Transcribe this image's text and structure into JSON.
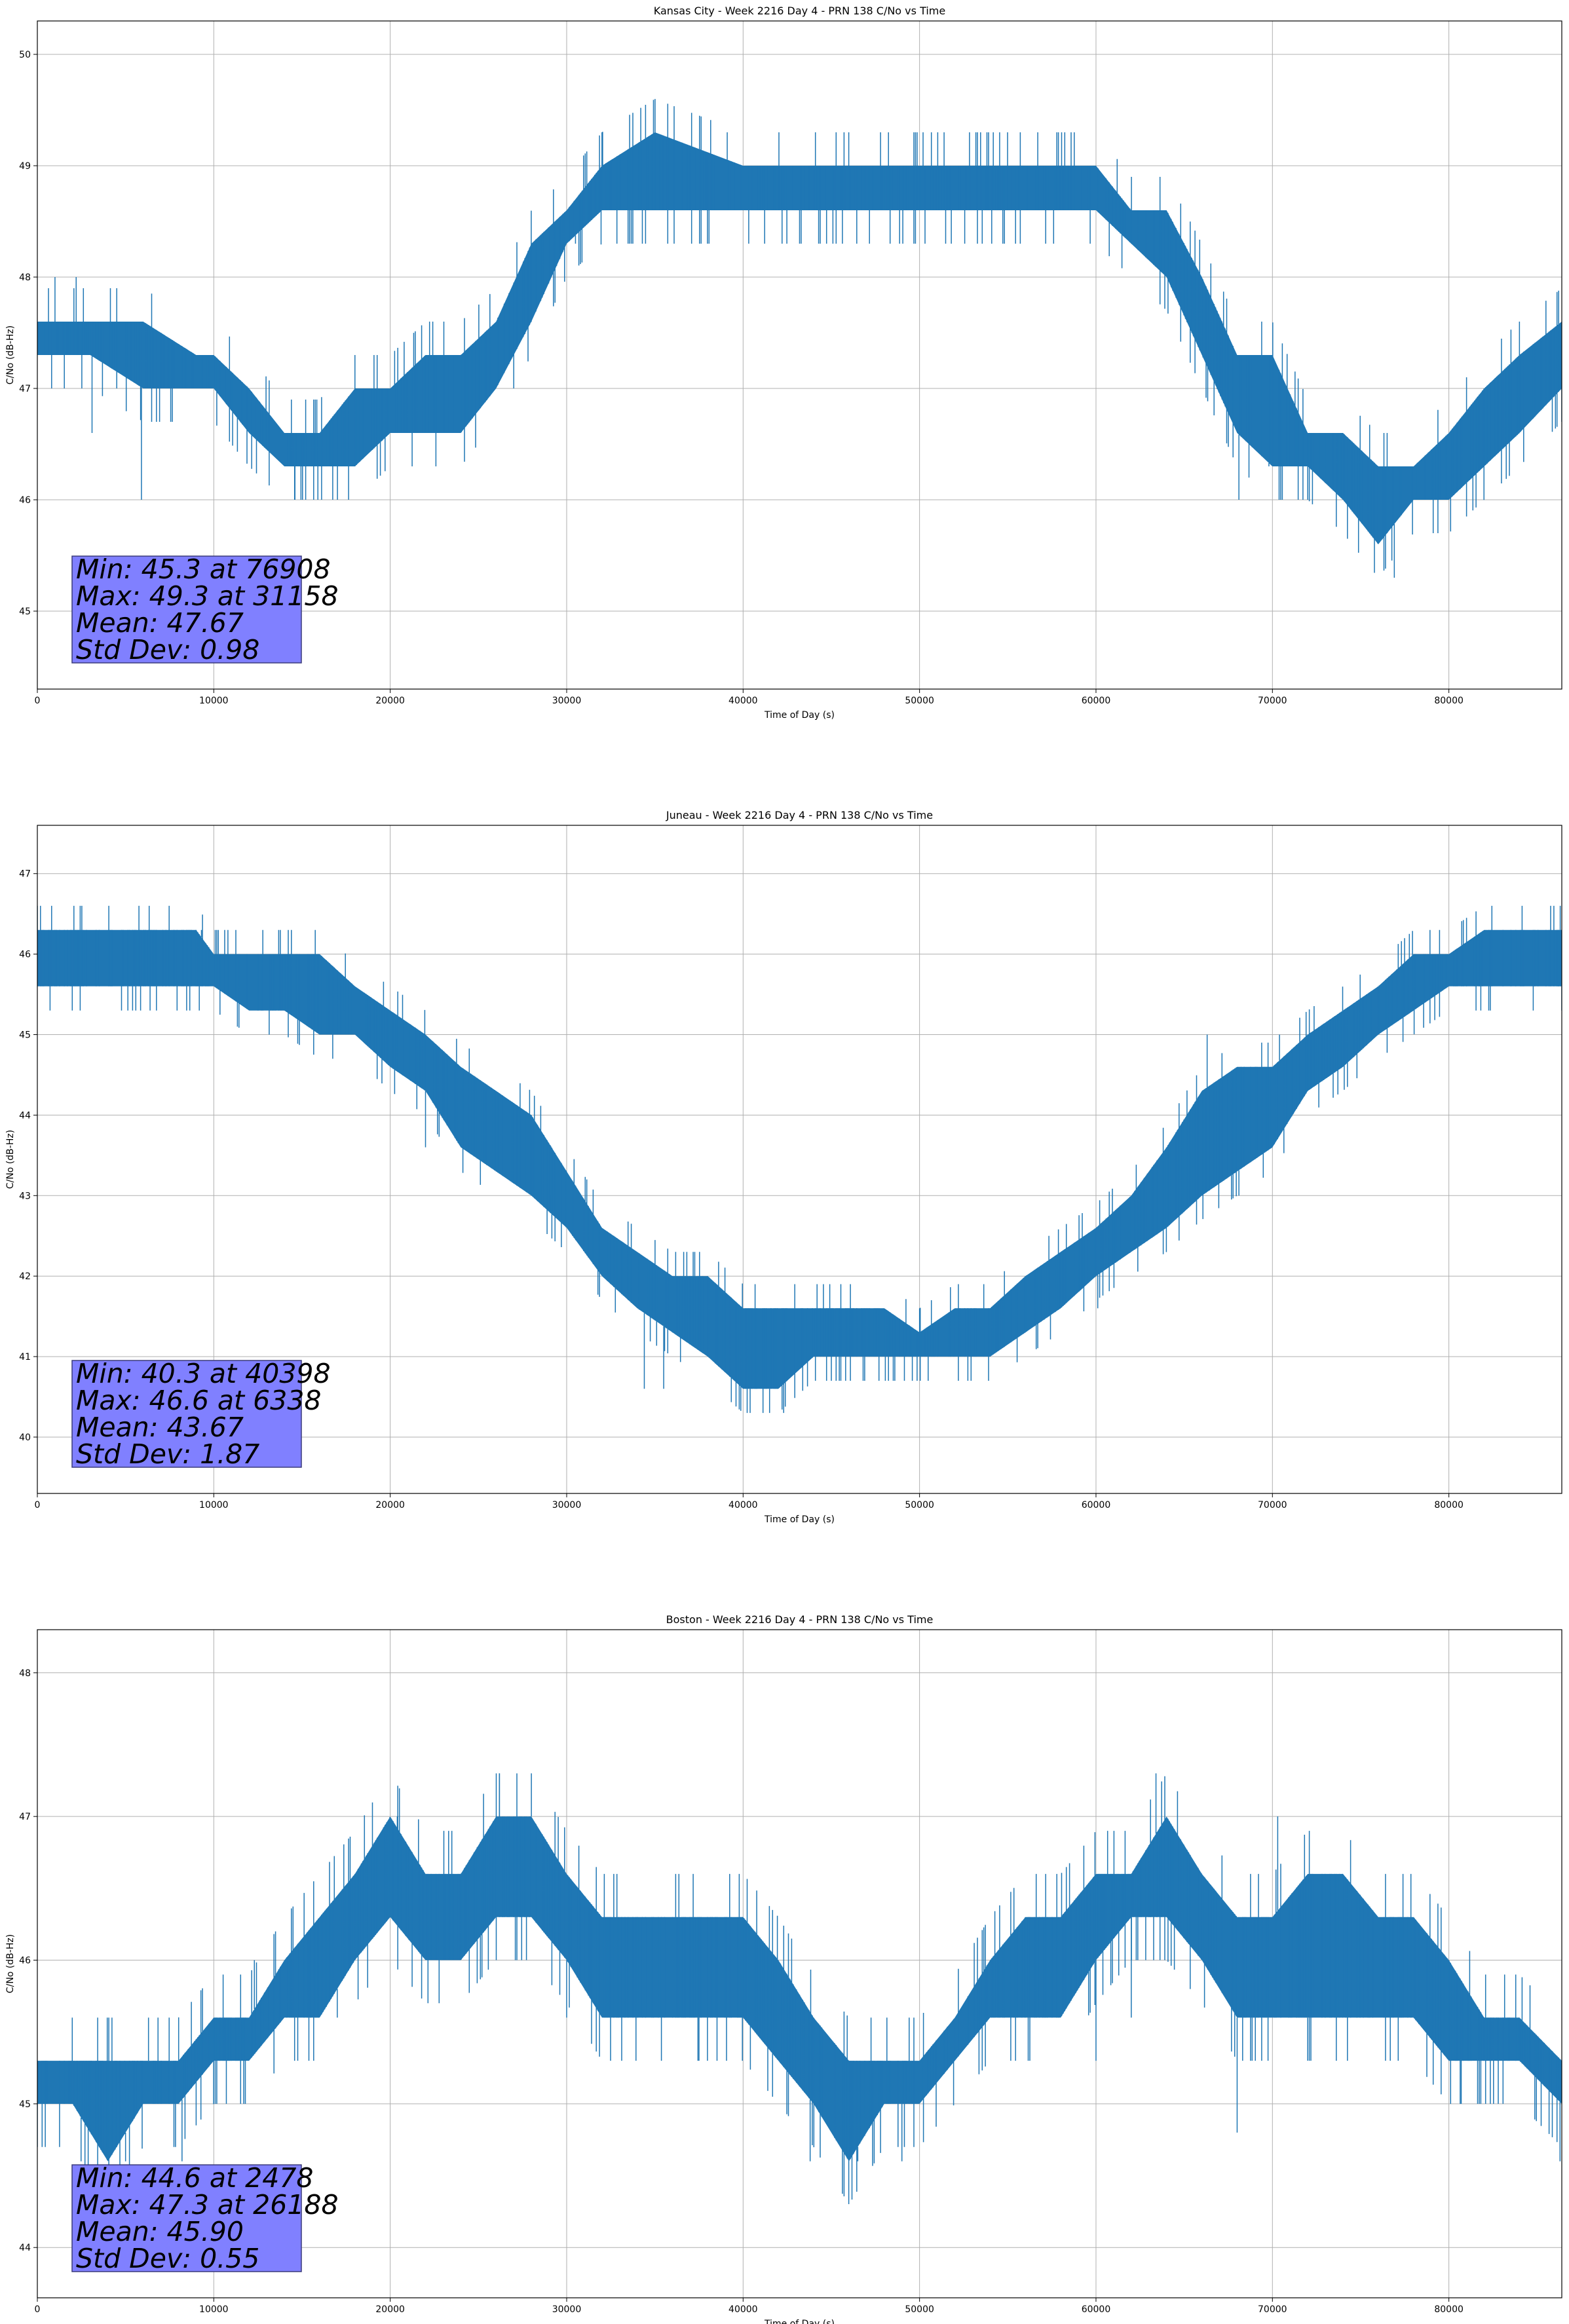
{
  "chart_data": [
    {
      "type": "line",
      "title": "Kansas City - Week 2216 Day 4 - PRN 138 C/No vs Time",
      "xlabel": "Time of Day (s)",
      "ylabel": "C/No (dB-Hz)",
      "xlim": [
        0,
        86400
      ],
      "ylim": [
        44.3,
        50.3
      ],
      "xticks": [
        0,
        10000,
        20000,
        30000,
        40000,
        50000,
        60000,
        70000,
        80000
      ],
      "yticks": [
        45,
        46,
        47,
        48,
        49,
        50
      ],
      "grid": true,
      "series_color": "#1f77b4",
      "series": [
        {
          "name": "PRN 138 C/No",
          "x": [
            0,
            3000,
            6000,
            9000,
            10000,
            12000,
            14000,
            16000,
            18000,
            20000,
            22000,
            24000,
            26000,
            28000,
            30000,
            32000,
            35000,
            40000,
            45000,
            50000,
            55000,
            60000,
            62000,
            64000,
            66000,
            68000,
            70000,
            72000,
            74000,
            76000,
            78000,
            80000,
            82000,
            84000,
            86400
          ],
          "low": [
            47.3,
            47.3,
            47.0,
            47.0,
            47.0,
            46.6,
            46.3,
            46.3,
            46.3,
            46.6,
            46.6,
            46.6,
            47.0,
            47.6,
            48.3,
            48.6,
            48.6,
            48.6,
            48.6,
            48.6,
            48.6,
            48.6,
            48.3,
            48.0,
            47.3,
            46.6,
            46.3,
            46.3,
            46.0,
            45.6,
            46.0,
            46.0,
            46.3,
            46.6,
            47.0
          ],
          "high": [
            47.6,
            47.6,
            47.6,
            47.3,
            47.3,
            47.0,
            46.6,
            46.6,
            47.0,
            47.0,
            47.3,
            47.3,
            47.6,
            48.3,
            48.6,
            49.0,
            49.3,
            49.0,
            49.0,
            49.0,
            49.0,
            49.0,
            48.6,
            48.6,
            48.0,
            47.3,
            47.3,
            46.6,
            46.6,
            46.3,
            46.3,
            46.6,
            47.0,
            47.3,
            47.6
          ],
          "spikes": [
            [
              1000,
              48.0
            ],
            [
              2200,
              48.0
            ],
            [
              3100,
              46.6
            ],
            [
              4500,
              47.0
            ],
            [
              5900,
              46.0
            ],
            [
              14600,
              46.0
            ],
            [
              15900,
              46.0
            ],
            [
              30500,
              48.3
            ],
            [
              32000,
              49.3
            ],
            [
              39100,
              49.3
            ],
            [
              50200,
              49.3
            ],
            [
              51800,
              48.3
            ],
            [
              65500,
              47.6
            ],
            [
              68100,
              46.0
            ],
            [
              69800,
              46.3
            ],
            [
              76908,
              45.3
            ],
            [
              81600,
              46.3
            ],
            [
              84000,
              47.6
            ]
          ]
        }
      ],
      "annotation": {
        "min": "Min: 45.3 at 76908",
        "max": "Max: 49.3 at 31158",
        "mean": "Mean: 47.67",
        "std": "Std Dev: 0.98",
        "box_color": "#8080ff",
        "position": "bottom-left"
      }
    },
    {
      "type": "line",
      "title": "Juneau - Week 2216 Day 4 - PRN 138 C/No vs Time",
      "xlabel": "Time of Day (s)",
      "ylabel": "C/No (dB-Hz)",
      "xlim": [
        0,
        86400
      ],
      "ylim": [
        39.3,
        47.6
      ],
      "xticks": [
        0,
        10000,
        20000,
        30000,
        40000,
        50000,
        60000,
        70000,
        80000
      ],
      "yticks": [
        40,
        41,
        42,
        43,
        44,
        45,
        46,
        47
      ],
      "grid": true,
      "series_color": "#1f77b4",
      "series": [
        {
          "name": "PRN 138 C/No",
          "x": [
            0,
            3000,
            6000,
            9000,
            10000,
            12000,
            14000,
            16000,
            18000,
            20000,
            22000,
            24000,
            26000,
            28000,
            30000,
            32000,
            34000,
            36000,
            38000,
            40000,
            42000,
            44000,
            46000,
            48000,
            50000,
            52000,
            54000,
            56000,
            58000,
            60000,
            62000,
            64000,
            66000,
            68000,
            70000,
            72000,
            74000,
            76000,
            78000,
            80000,
            82000,
            84000,
            86400
          ],
          "low": [
            45.6,
            45.6,
            45.6,
            45.6,
            45.6,
            45.3,
            45.3,
            45.0,
            45.0,
            44.6,
            44.3,
            43.6,
            43.3,
            43.0,
            42.6,
            42.0,
            41.6,
            41.3,
            41.0,
            40.6,
            40.6,
            41.0,
            41.0,
            41.0,
            41.0,
            41.0,
            41.0,
            41.3,
            41.6,
            42.0,
            42.3,
            42.6,
            43.0,
            43.3,
            43.6,
            44.3,
            44.6,
            45.0,
            45.3,
            45.6,
            45.6,
            45.6,
            45.6
          ],
          "high": [
            46.3,
            46.3,
            46.3,
            46.3,
            46.0,
            46.0,
            46.0,
            46.0,
            45.6,
            45.3,
            45.0,
            44.6,
            44.3,
            44.0,
            43.3,
            42.6,
            42.3,
            42.0,
            42.0,
            41.6,
            41.6,
            41.6,
            41.6,
            41.6,
            41.3,
            41.6,
            41.6,
            42.0,
            42.3,
            42.6,
            43.0,
            43.6,
            44.3,
            44.6,
            44.6,
            45.0,
            45.3,
            45.6,
            46.0,
            46.0,
            46.3,
            46.3,
            46.3
          ],
          "spikes": [
            [
              6338,
              46.6
            ],
            [
              9300,
              46.3
            ],
            [
              11000,
              46.0
            ],
            [
              17400,
              45.3
            ],
            [
              22000,
              43.6
            ],
            [
              24800,
              44.3
            ],
            [
              27700,
              44.0
            ],
            [
              29100,
              43.0
            ],
            [
              34400,
              40.6
            ],
            [
              35500,
              40.6
            ],
            [
              40398,
              40.3
            ],
            [
              41500,
              40.3
            ],
            [
              42300,
              40.3
            ],
            [
              45700,
              41.6
            ],
            [
              50000,
              41.6
            ],
            [
              53400,
              41.6
            ],
            [
              60100,
              41.6
            ],
            [
              66300,
              45.0
            ],
            [
              68100,
              43.0
            ],
            [
              70400,
              45.0
            ],
            [
              75500,
              45.3
            ],
            [
              86200,
              45.6
            ]
          ]
        }
      ],
      "annotation": {
        "min": "Min: 40.3 at 40398",
        "max": "Max: 46.6 at 6338",
        "mean": "Mean: 43.67",
        "std": "Std Dev: 1.87",
        "box_color": "#8080ff",
        "position": "bottom-left"
      }
    },
    {
      "type": "line",
      "title": "Boston - Week 2216 Day 4 - PRN 138 C/No vs Time",
      "xlabel": "Time of Day (s)",
      "ylabel": "C/No (dB-Hz)",
      "xlim": [
        0,
        86400
      ],
      "ylim": [
        43.65,
        48.3
      ],
      "xticks": [
        0,
        10000,
        20000,
        30000,
        40000,
        50000,
        60000,
        70000,
        80000
      ],
      "yticks": [
        44,
        45,
        46,
        47,
        48
      ],
      "grid": true,
      "series_color": "#1f77b4",
      "series": [
        {
          "name": "PRN 138 C/No",
          "x": [
            0,
            2000,
            4000,
            6000,
            8000,
            10000,
            12000,
            14000,
            16000,
            18000,
            20000,
            22000,
            24000,
            26000,
            28000,
            30000,
            32000,
            34000,
            36000,
            38000,
            40000,
            42000,
            44000,
            46000,
            48000,
            50000,
            52000,
            54000,
            56000,
            58000,
            60000,
            62000,
            64000,
            66000,
            68000,
            70000,
            72000,
            74000,
            76000,
            78000,
            80000,
            82000,
            84000,
            86400
          ],
          "low": [
            45.0,
            45.0,
            44.6,
            45.0,
            45.0,
            45.3,
            45.3,
            45.6,
            45.6,
            46.0,
            46.3,
            46.0,
            46.0,
            46.3,
            46.3,
            46.0,
            45.6,
            45.6,
            45.6,
            45.6,
            45.6,
            45.3,
            45.0,
            44.6,
            45.0,
            45.0,
            45.3,
            45.6,
            45.6,
            45.6,
            46.0,
            46.3,
            46.3,
            46.0,
            45.6,
            45.6,
            45.6,
            45.6,
            45.6,
            45.6,
            45.3,
            45.3,
            45.3,
            45.0
          ],
          "high": [
            45.3,
            45.3,
            45.3,
            45.3,
            45.3,
            45.6,
            45.6,
            46.0,
            46.3,
            46.6,
            47.0,
            46.6,
            46.6,
            47.0,
            47.0,
            46.6,
            46.3,
            46.3,
            46.3,
            46.3,
            46.3,
            46.0,
            45.6,
            45.3,
            45.3,
            45.3,
            45.6,
            46.0,
            46.3,
            46.3,
            46.6,
            46.6,
            47.0,
            46.6,
            46.3,
            46.3,
            46.6,
            46.6,
            46.3,
            46.3,
            46.0,
            45.6,
            45.6,
            45.3
          ],
          "spikes": [
            [
              2478,
              44.6
            ],
            [
              5000,
              44.6
            ],
            [
              6300,
              45.6
            ],
            [
              8200,
              44.6
            ],
            [
              10000,
              45.6
            ],
            [
              12300,
              46.0
            ],
            [
              17000,
              45.6
            ],
            [
              20400,
              47.0
            ],
            [
              26188,
              47.3
            ],
            [
              28000,
              47.3
            ],
            [
              30000,
              45.6
            ],
            [
              37500,
              45.3
            ],
            [
              43800,
              44.6
            ],
            [
              46500,
              44.6
            ],
            [
              49000,
              44.6
            ],
            [
              60000,
              45.3
            ],
            [
              62000,
              45.6
            ],
            [
              63400,
              47.3
            ],
            [
              68000,
              44.8
            ],
            [
              70300,
              47.0
            ],
            [
              72000,
              45.3
            ],
            [
              80700,
              45.0
            ],
            [
              86300,
              44.6
            ]
          ]
        }
      ],
      "annotation": {
        "min": "Min: 44.6 at 2478",
        "max": "Max: 47.3 at 26188",
        "mean": "Mean: 45.90",
        "std": "Std Dev: 0.55",
        "box_color": "#8080ff",
        "position": "bottom-left"
      }
    }
  ]
}
